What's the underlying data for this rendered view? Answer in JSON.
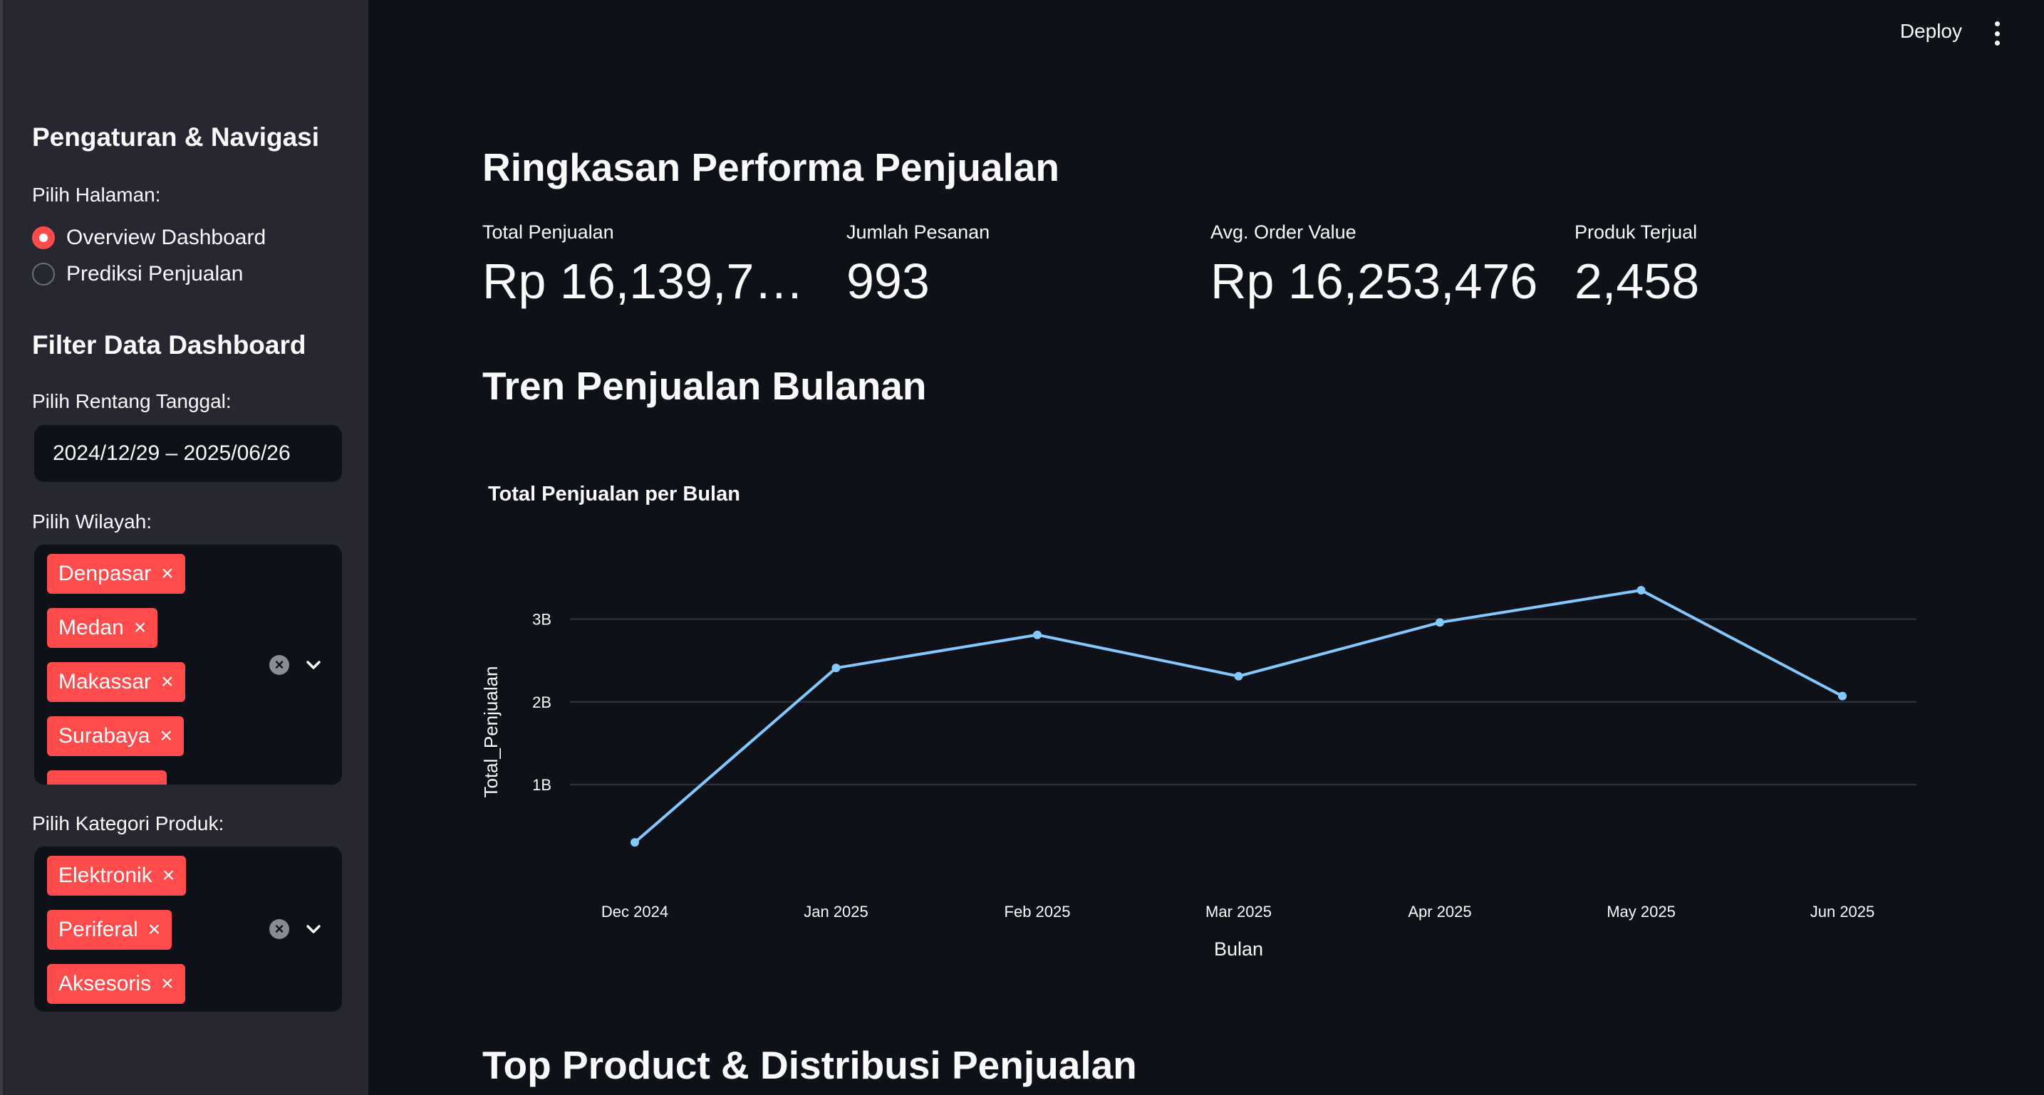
{
  "sidebar": {
    "nav_title": "Pengaturan & Navigasi",
    "page_select_label": "Pilih Halaman:",
    "pages": [
      {
        "label": "Overview Dashboard",
        "selected": true
      },
      {
        "label": "Prediksi Penjualan",
        "selected": false
      }
    ],
    "filter_title": "Filter Data Dashboard",
    "date_label": "Pilih Rentang Tanggal:",
    "date_value": "2024/12/29 – 2025/06/26",
    "region_label": "Pilih Wilayah:",
    "regions": [
      "Denpasar",
      "Medan",
      "Makassar",
      "Surabaya"
    ],
    "category_label": "Pilih Kategori Produk:",
    "categories": [
      "Elektronik",
      "Periferal",
      "Aksesoris"
    ],
    "tag_remove_glyph": "×",
    "clear_glyph": "×"
  },
  "header": {
    "deploy_label": "Deploy"
  },
  "main": {
    "summary_title": "Ringkasan Performa Penjualan",
    "metrics": [
      {
        "label": "Total Penjualan",
        "value": "Rp 16,139,70…"
      },
      {
        "label": "Jumlah Pesanan",
        "value": "993"
      },
      {
        "label": "Avg. Order Value",
        "value": "Rp 16,253,476"
      },
      {
        "label": "Produk Terjual",
        "value": "2,458"
      }
    ],
    "trend_title": "Tren Penjualan Bulanan",
    "next_section_title": "Top Product & Distribusi Penjualan"
  },
  "colors": {
    "accent": "#ff4b4b",
    "background": "#0e1117",
    "sidebar": "#262730",
    "line": "#83c9ff"
  },
  "icons": {
    "menu": "kebab-menu-icon",
    "clear": "clear-circle-icon",
    "dropdown": "chevron-down-icon"
  },
  "chart_data": {
    "type": "line",
    "title": "Total Penjualan per Bulan",
    "xlabel": "Bulan",
    "ylabel": "Total_Penjualan",
    "categories": [
      "Dec 2024",
      "Jan 2025",
      "Feb 2025",
      "Mar 2025",
      "Apr 2025",
      "May 2025",
      "Jun 2025"
    ],
    "series": [
      {
        "values": [
          300000000,
          2410000000,
          2810000000,
          2310000000,
          2960000000,
          3350000000,
          2070000000
        ]
      }
    ],
    "yticks": [
      {
        "value": 1000000000,
        "label": "1B"
      },
      {
        "value": 2000000000,
        "label": "2B"
      },
      {
        "value": 3000000000,
        "label": "3B"
      }
    ],
    "grid": true,
    "markers": true
  }
}
